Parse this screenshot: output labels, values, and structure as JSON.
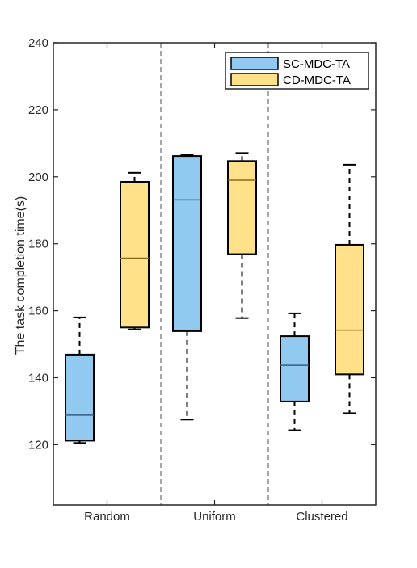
{
  "chart_data": {
    "type": "box",
    "ylabel": "The task completion time(s)",
    "xlabel": "",
    "ylim": [
      102,
      240
    ],
    "yticks": [
      120,
      140,
      160,
      180,
      200,
      220,
      240
    ],
    "categories": [
      "Random",
      "Uniform",
      "Clustered"
    ],
    "grid": false,
    "separators": "dashed vertical lines between categories",
    "legend_position": "top-right",
    "series": [
      {
        "name": "SC-MDC-TA",
        "color": "#92C9F0",
        "boxes": [
          {
            "min": 120.5,
            "q1": 121.2,
            "median": 128.8,
            "q3": 146.9,
            "max": 158.0
          },
          {
            "min": 127.5,
            "q1": 153.9,
            "median": 193.1,
            "q3": 206.2,
            "max": 206.6
          },
          {
            "min": 124.3,
            "q1": 132.9,
            "median": 143.7,
            "q3": 152.4,
            "max": 159.2
          }
        ]
      },
      {
        "name": "CD-MDC-TA",
        "color": "#FEE188",
        "boxes": [
          {
            "min": 154.4,
            "q1": 155.0,
            "median": 175.7,
            "q3": 198.5,
            "max": 201.2
          },
          {
            "min": 157.8,
            "q1": 176.9,
            "median": 199.0,
            "q3": 204.7,
            "max": 207.1
          },
          {
            "min": 129.4,
            "q1": 141.0,
            "median": 154.2,
            "q3": 179.7,
            "max": 203.6
          }
        ]
      }
    ]
  }
}
